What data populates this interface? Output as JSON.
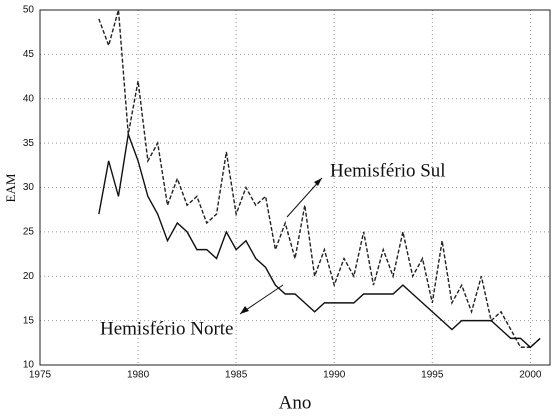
{
  "chart_data": {
    "type": "line",
    "x_label": "Ano",
    "y_label": "EAM",
    "x": [
      1978,
      1978.5,
      1979,
      1979.5,
      1980,
      1980.5,
      1981,
      1981.5,
      1982,
      1982.5,
      1983,
      1983.5,
      1984,
      1984.5,
      1985,
      1985.5,
      1986,
      1986.5,
      1987,
      1987.5,
      1988,
      1988.5,
      1989,
      1989.5,
      1990,
      1990.5,
      1991,
      1991.5,
      1992,
      1992.5,
      1993,
      1993.5,
      1994,
      1994.5,
      1995,
      1995.5,
      1996,
      1996.5,
      1997,
      1997.5,
      1998,
      1998.5,
      1999,
      1999.5,
      2000,
      2000.5
    ],
    "series": [
      {
        "name": "Hemisfério Sul",
        "color": "#222222",
        "dash": true,
        "values": [
          49,
          46,
          50,
          36,
          42,
          33,
          35,
          28,
          31,
          28,
          29,
          26,
          27,
          34,
          27,
          30,
          28,
          29,
          23,
          26,
          22,
          28,
          20,
          23,
          19,
          22,
          20,
          25,
          19,
          23,
          20,
          25,
          20,
          22,
          17,
          24,
          17,
          19,
          16,
          20,
          15,
          16,
          14,
          12,
          12,
          13
        ]
      },
      {
        "name": "Hemisfério Norte",
        "color": "#111111",
        "dash": false,
        "values": [
          27,
          33,
          29,
          36,
          33,
          29,
          27,
          24,
          26,
          25,
          23,
          23,
          22,
          25,
          23,
          24,
          22,
          21,
          19,
          18,
          18,
          17,
          16,
          17,
          17,
          17,
          17,
          18,
          18,
          18,
          18,
          19,
          18,
          17,
          16,
          15,
          14,
          15,
          15,
          15,
          15,
          14,
          13,
          13,
          12,
          13
        ]
      }
    ],
    "xlim": [
      1975,
      2001
    ],
    "ylim": [
      10,
      50
    ],
    "xticks": [
      1975,
      1980,
      1985,
      1990,
      1995,
      2000
    ],
    "yticks": [
      10,
      15,
      20,
      25,
      30,
      35,
      40,
      45,
      50
    ],
    "grid": true
  }
}
